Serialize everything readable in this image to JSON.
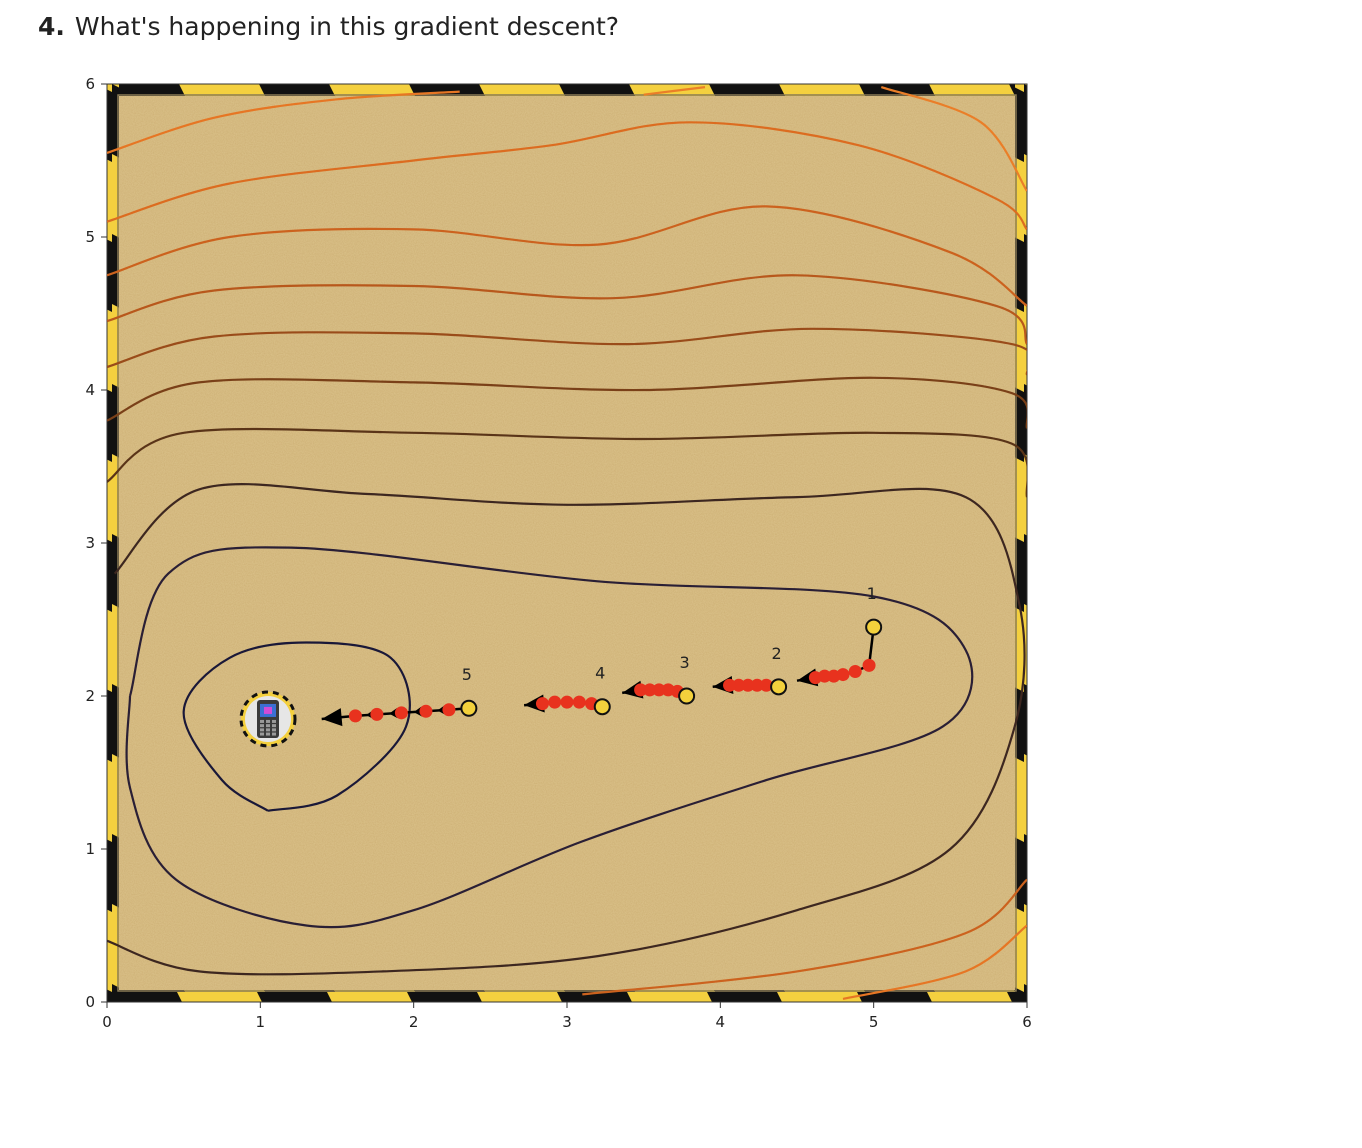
{
  "question": {
    "number": "4.",
    "text": "What's happening in this gradient descent?"
  },
  "colors": {
    "sand": "#dcc38c",
    "hazard_yellow": "#f4d03f",
    "hazard_black": "#111111",
    "step_dot": "#e8321e",
    "start_dot": "#f3d13c",
    "arrow": "#000000"
  },
  "chart_data": {
    "type": "line",
    "title": "",
    "xlabel": "",
    "ylabel": "",
    "xlim": [
      0,
      6
    ],
    "ylim": [
      0,
      6
    ],
    "x_ticks": [
      "0",
      "1",
      "2",
      "3",
      "4",
      "5",
      "6"
    ],
    "y_ticks": [
      "0",
      "1",
      "2",
      "3",
      "4",
      "5",
      "6"
    ],
    "grid": false,
    "minimum_marker": {
      "x": 1.05,
      "y": 1.85,
      "icon": "phone-icon"
    },
    "contours": [
      {
        "level": 1,
        "color": "#1a1838",
        "points": [
          [
            1.05,
            1.25
          ],
          [
            1.5,
            1.35
          ],
          [
            1.95,
            1.8
          ],
          [
            1.85,
            2.25
          ],
          [
            1.3,
            2.35
          ],
          [
            0.8,
            2.25
          ],
          [
            0.5,
            1.9
          ],
          [
            0.75,
            1.45
          ],
          [
            1.05,
            1.25
          ]
        ]
      },
      {
        "level": 2,
        "color": "#2a1f35",
        "points": [
          [
            0.15,
            2.0
          ],
          [
            0.4,
            2.8
          ],
          [
            1.2,
            2.97
          ],
          [
            3.2,
            2.75
          ],
          [
            5.0,
            2.65
          ],
          [
            5.6,
            2.3
          ],
          [
            5.45,
            1.8
          ],
          [
            4.3,
            1.45
          ],
          [
            3.1,
            1.05
          ],
          [
            2.0,
            0.6
          ],
          [
            1.3,
            0.5
          ],
          [
            0.45,
            0.8
          ],
          [
            0.15,
            1.4
          ],
          [
            0.15,
            2.0
          ]
        ]
      },
      {
        "level": 3,
        "color": "#3d2720",
        "points": [
          [
            0.05,
            2.8
          ],
          [
            0.6,
            3.35
          ],
          [
            1.7,
            3.32
          ],
          [
            3.0,
            3.25
          ],
          [
            4.5,
            3.3
          ],
          [
            5.6,
            3.3
          ],
          [
            5.95,
            2.6
          ],
          [
            5.92,
            1.8
          ],
          [
            5.5,
            1.0
          ],
          [
            4.5,
            0.6
          ],
          [
            3.2,
            0.3
          ],
          [
            1.8,
            0.2
          ],
          [
            0.6,
            0.2
          ],
          [
            0.0,
            0.4
          ]
        ]
      },
      {
        "level": 4,
        "color": "#5a3418",
        "points": [
          [
            0.0,
            3.4
          ],
          [
            0.5,
            3.72
          ],
          [
            2.0,
            3.72
          ],
          [
            3.5,
            3.68
          ],
          [
            5.0,
            3.72
          ],
          [
            5.9,
            3.65
          ],
          [
            6.0,
            3.3
          ]
        ]
      },
      {
        "level": 5,
        "color": "#7a4018",
        "points": [
          [
            0.0,
            3.8
          ],
          [
            0.6,
            4.05
          ],
          [
            2.0,
            4.05
          ],
          [
            3.5,
            4.0
          ],
          [
            5.0,
            4.08
          ],
          [
            5.9,
            3.98
          ],
          [
            6.0,
            3.75
          ]
        ]
      },
      {
        "level": 6,
        "color": "#9a4c1a",
        "points": [
          [
            0.0,
            4.15
          ],
          [
            0.7,
            4.35
          ],
          [
            2.0,
            4.37
          ],
          [
            3.4,
            4.3
          ],
          [
            4.6,
            4.4
          ],
          [
            5.9,
            4.3
          ],
          [
            6.0,
            4.1
          ]
        ]
      },
      {
        "level": 7,
        "color": "#b8581c",
        "points": [
          [
            0.0,
            4.45
          ],
          [
            0.7,
            4.65
          ],
          [
            2.0,
            4.68
          ],
          [
            3.3,
            4.6
          ],
          [
            4.5,
            4.75
          ],
          [
            5.8,
            4.55
          ],
          [
            6.0,
            4.3
          ]
        ]
      },
      {
        "level": 8,
        "color": "#cc621e",
        "points": [
          [
            0.0,
            4.75
          ],
          [
            0.8,
            5.0
          ],
          [
            2.0,
            5.05
          ],
          [
            3.2,
            4.95
          ],
          [
            4.3,
            5.2
          ],
          [
            5.5,
            4.9
          ],
          [
            6.0,
            4.55
          ]
        ]
      },
      {
        "level": 9,
        "color": "#dc6c20",
        "points": [
          [
            0.0,
            5.1
          ],
          [
            0.8,
            5.35
          ],
          [
            2.0,
            5.5
          ],
          [
            2.9,
            5.6
          ],
          [
            3.8,
            5.75
          ],
          [
            4.9,
            5.6
          ],
          [
            5.8,
            5.25
          ],
          [
            6.0,
            5.05
          ]
        ]
      },
      {
        "level": 10,
        "color": "#e67624",
        "points": [
          [
            0.0,
            5.55
          ],
          [
            0.7,
            5.78
          ],
          [
            1.5,
            5.9
          ],
          [
            2.3,
            5.95
          ]
        ]
      },
      {
        "level": 11,
        "color": "#ea7e28",
        "points": [
          [
            3.5,
            5.93
          ],
          [
            3.9,
            5.98
          ]
        ]
      },
      {
        "level": 12,
        "color": "#ea7e28",
        "points": [
          [
            5.05,
            5.98
          ],
          [
            5.7,
            5.75
          ],
          [
            6.0,
            5.3
          ]
        ]
      },
      {
        "level": 13,
        "color": "#e67624",
        "points": [
          [
            4.8,
            0.02
          ],
          [
            5.6,
            0.2
          ],
          [
            6.0,
            0.5
          ]
        ]
      },
      {
        "level": 14,
        "color": "#cc621e",
        "points": [
          [
            3.1,
            0.05
          ],
          [
            4.5,
            0.2
          ],
          [
            5.6,
            0.45
          ],
          [
            6.0,
            0.8
          ]
        ]
      }
    ],
    "runs": [
      {
        "label": "1",
        "start": [
          5.0,
          2.45
        ],
        "points": [
          [
            4.97,
            2.2
          ],
          [
            4.88,
            2.16
          ],
          [
            4.8,
            2.14
          ],
          [
            4.74,
            2.13
          ],
          [
            4.68,
            2.13
          ],
          [
            4.62,
            2.12
          ]
        ],
        "arrow_head": [
          4.5,
          2.1
        ]
      },
      {
        "label": "2",
        "start": [
          4.38,
          2.06
        ],
        "points": [
          [
            4.3,
            2.07
          ],
          [
            4.24,
            2.07
          ],
          [
            4.18,
            2.07
          ],
          [
            4.12,
            2.07
          ],
          [
            4.06,
            2.07
          ]
        ],
        "arrow_head": [
          3.95,
          2.06
        ]
      },
      {
        "label": "3",
        "start": [
          3.78,
          2.0
        ],
        "points": [
          [
            3.72,
            2.03
          ],
          [
            3.66,
            2.04
          ],
          [
            3.6,
            2.04
          ],
          [
            3.54,
            2.04
          ],
          [
            3.48,
            2.04
          ]
        ],
        "arrow_head": [
          3.36,
          2.02
        ]
      },
      {
        "label": "4",
        "start": [
          3.23,
          1.93
        ],
        "points": [
          [
            3.16,
            1.95
          ],
          [
            3.08,
            1.96
          ],
          [
            3.0,
            1.96
          ],
          [
            2.92,
            1.96
          ],
          [
            2.84,
            1.95
          ]
        ],
        "arrow_head": [
          2.72,
          1.94
        ]
      },
      {
        "label": "5",
        "start": [
          2.36,
          1.92
        ],
        "points": [
          [
            2.23,
            1.91
          ],
          [
            2.08,
            1.9
          ],
          [
            1.92,
            1.89
          ],
          [
            1.76,
            1.88
          ],
          [
            1.62,
            1.87
          ]
        ],
        "arrow_head": [
          1.4,
          1.85
        ]
      }
    ]
  }
}
